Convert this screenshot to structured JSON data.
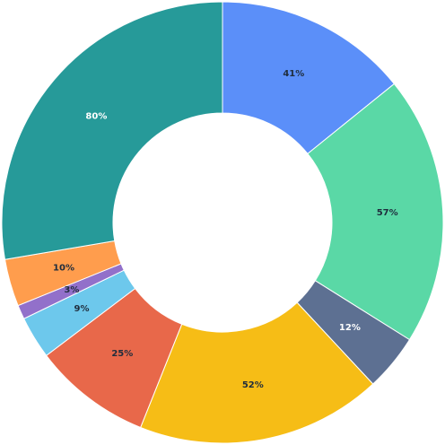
{
  "chart_data": {
    "type": "pie",
    "variant": "donut",
    "title": "",
    "legend": "none",
    "slices": [
      {
        "label": "41%",
        "value": 41,
        "color": "#5b8ff9",
        "text_color": "#1f2d3d"
      },
      {
        "label": "57%",
        "value": 57,
        "color": "#5ad8a6",
        "text_color": "#1f2d3d"
      },
      {
        "label": "12%",
        "value": 12,
        "color": "#5d7092",
        "text_color": "#ffffff"
      },
      {
        "label": "52%",
        "value": 52,
        "color": "#f6bd16",
        "text_color": "#1f2d3d"
      },
      {
        "label": "25%",
        "value": 25,
        "color": "#e8684a",
        "text_color": "#1f2d3d"
      },
      {
        "label": "9%",
        "value": 9,
        "color": "#6dc8ec",
        "text_color": "#1f2d3d"
      },
      {
        "label": "3%",
        "value": 3,
        "color": "#9270ca",
        "text_color": "#1f2d3d"
      },
      {
        "label": "10%",
        "value": 10,
        "color": "#ff9d4d",
        "text_color": "#1f2d3d"
      },
      {
        "label": "80%",
        "value": 80,
        "color": "#269a99",
        "text_color": "#ffffff"
      }
    ]
  }
}
